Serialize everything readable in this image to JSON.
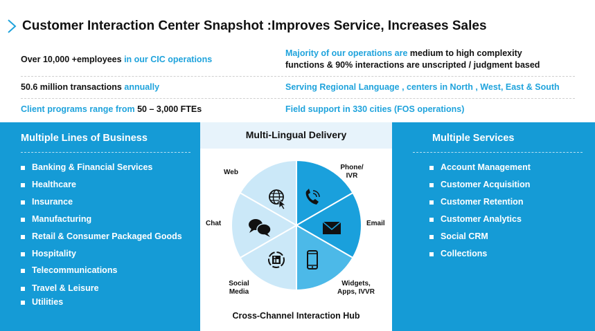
{
  "title": "Customer Interaction Center Snapshot :Improves Service, Increases Sales",
  "facts": {
    "employees": {
      "dark": "Over 10,000 +employees",
      "blue": " in our CIC operations"
    },
    "transactions": {
      "dark": "50.6 million transactions",
      "blue": " annually"
    },
    "programs": {
      "blue": "Client programs range from ",
      "dark": " 50 – 3,000 FTEs"
    },
    "complexity": {
      "blue": "Majority of our operations are",
      "dark1": " medium to high complexity",
      "dark2": "functions & 90% interactions are unscripted / judgment based"
    },
    "language": "Serving Regional Language , centers in North , West, East & South",
    "field": "Field support in 330 cities (FOS operations)"
  },
  "lines_of_business": {
    "heading": "Multiple Lines of Business",
    "items": [
      "Banking & Financial Services",
      "Healthcare",
      "Insurance",
      "Manufacturing",
      "Retail & Consumer Packaged Goods",
      "Hospitality",
      "Telecommunications",
      "Travel & Leisure",
      "Utilities"
    ]
  },
  "services": {
    "heading": "Multiple Services",
    "items": [
      "Account Management",
      "Customer Acquisition",
      "Customer Retention",
      "Customer Analytics",
      "Social CRM",
      "Collections"
    ]
  },
  "delivery": {
    "title": "Multi-Lingual Delivery",
    "hub": "Cross-Channel Interaction Hub",
    "channels": {
      "web": "Web",
      "phone": [
        "Phone/",
        "IVR"
      ],
      "email": "Email",
      "widgets": [
        "Widgets,",
        "Apps, IVVR"
      ],
      "social": [
        "Social",
        "Media"
      ],
      "chat": "Chat"
    },
    "icons": [
      "globe-cursor-icon",
      "phone-icon",
      "envelope-icon",
      "mobile-icon",
      "social-media-icon",
      "chat-bubbles-icon"
    ]
  },
  "colors": {
    "accent": "#1fa3dc",
    "panel": "#159bd6",
    "segment_dark": "#1aa0dc",
    "segment_mid": "#4cb9e8",
    "segment_light": "#cbe8f8"
  }
}
